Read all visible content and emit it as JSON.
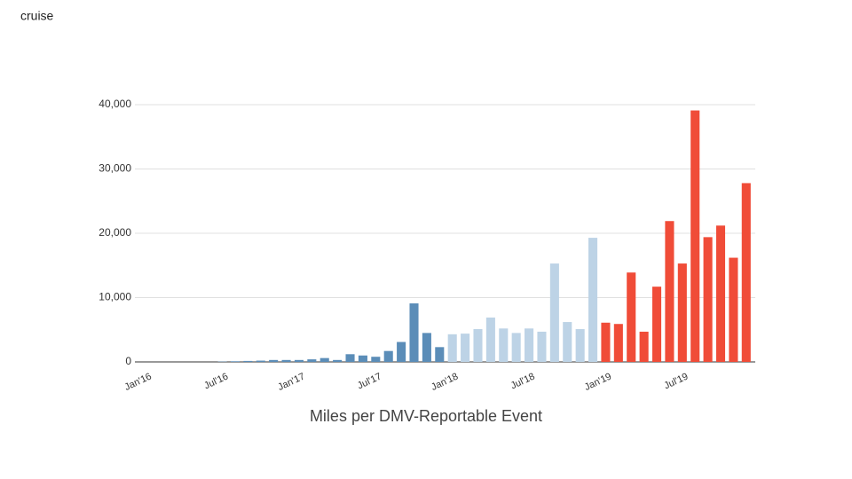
{
  "brand": "cruise",
  "chart_data": {
    "type": "bar",
    "title": "Miles per DMV-Reportable Event",
    "categories": [
      "Jan'16",
      null,
      null,
      null,
      null,
      null,
      "Jul'16",
      null,
      null,
      null,
      null,
      null,
      "Jan'17",
      null,
      null,
      null,
      null,
      null,
      "Jul'17",
      null,
      null,
      null,
      null,
      null,
      "Jan'18",
      null,
      null,
      null,
      null,
      null,
      "Jul'18",
      null,
      null,
      null,
      null,
      null,
      "Jan'19",
      null,
      null,
      null,
      null,
      null,
      "Jul'19",
      null,
      null,
      null,
      null,
      null
    ],
    "values": [
      0,
      0,
      0,
      0,
      0,
      0,
      50,
      100,
      150,
      200,
      300,
      300,
      300,
      400,
      600,
      300,
      1200,
      1000,
      800,
      1700,
      3100,
      9100,
      4500,
      2300,
      4300,
      4400,
      5100,
      6900,
      5200,
      4500,
      5200,
      4700,
      15300,
      6200,
      5100,
      19300,
      6100,
      5900,
      13900,
      4700,
      11700,
      21900,
      15300,
      39100,
      19400,
      21200,
      16200,
      27800
    ],
    "colors": [
      "#5b8db8",
      "#5b8db8",
      "#5b8db8",
      "#5b8db8",
      "#5b8db8",
      "#5b8db8",
      "#5b8db8",
      "#5b8db8",
      "#5b8db8",
      "#5b8db8",
      "#5b8db8",
      "#5b8db8",
      "#5b8db8",
      "#5b8db8",
      "#5b8db8",
      "#5b8db8",
      "#5b8db8",
      "#5b8db8",
      "#5b8db8",
      "#5b8db8",
      "#5b8db8",
      "#5b8db8",
      "#5b8db8",
      "#5b8db8",
      "#bdd3e6",
      "#bdd3e6",
      "#bdd3e6",
      "#bdd3e6",
      "#bdd3e6",
      "#bdd3e6",
      "#bdd3e6",
      "#bdd3e6",
      "#bdd3e6",
      "#bdd3e6",
      "#bdd3e6",
      "#bdd3e6",
      "#f04c38",
      "#f04c38",
      "#f04c38",
      "#f04c38",
      "#f04c38",
      "#f04c38",
      "#f04c38",
      "#f04c38",
      "#f04c38",
      "#f04c38",
      "#f04c38",
      "#f04c38"
    ],
    "ylim": [
      0,
      40000
    ],
    "yticks": [
      0,
      {
        "value": 10000,
        "label": "10,000"
      },
      {
        "value": 20000,
        "label": "20,000"
      },
      {
        "value": 30000,
        "label": "30,000"
      },
      {
        "value": 40000,
        "label": "40,000"
      }
    ],
    "grid": true
  }
}
